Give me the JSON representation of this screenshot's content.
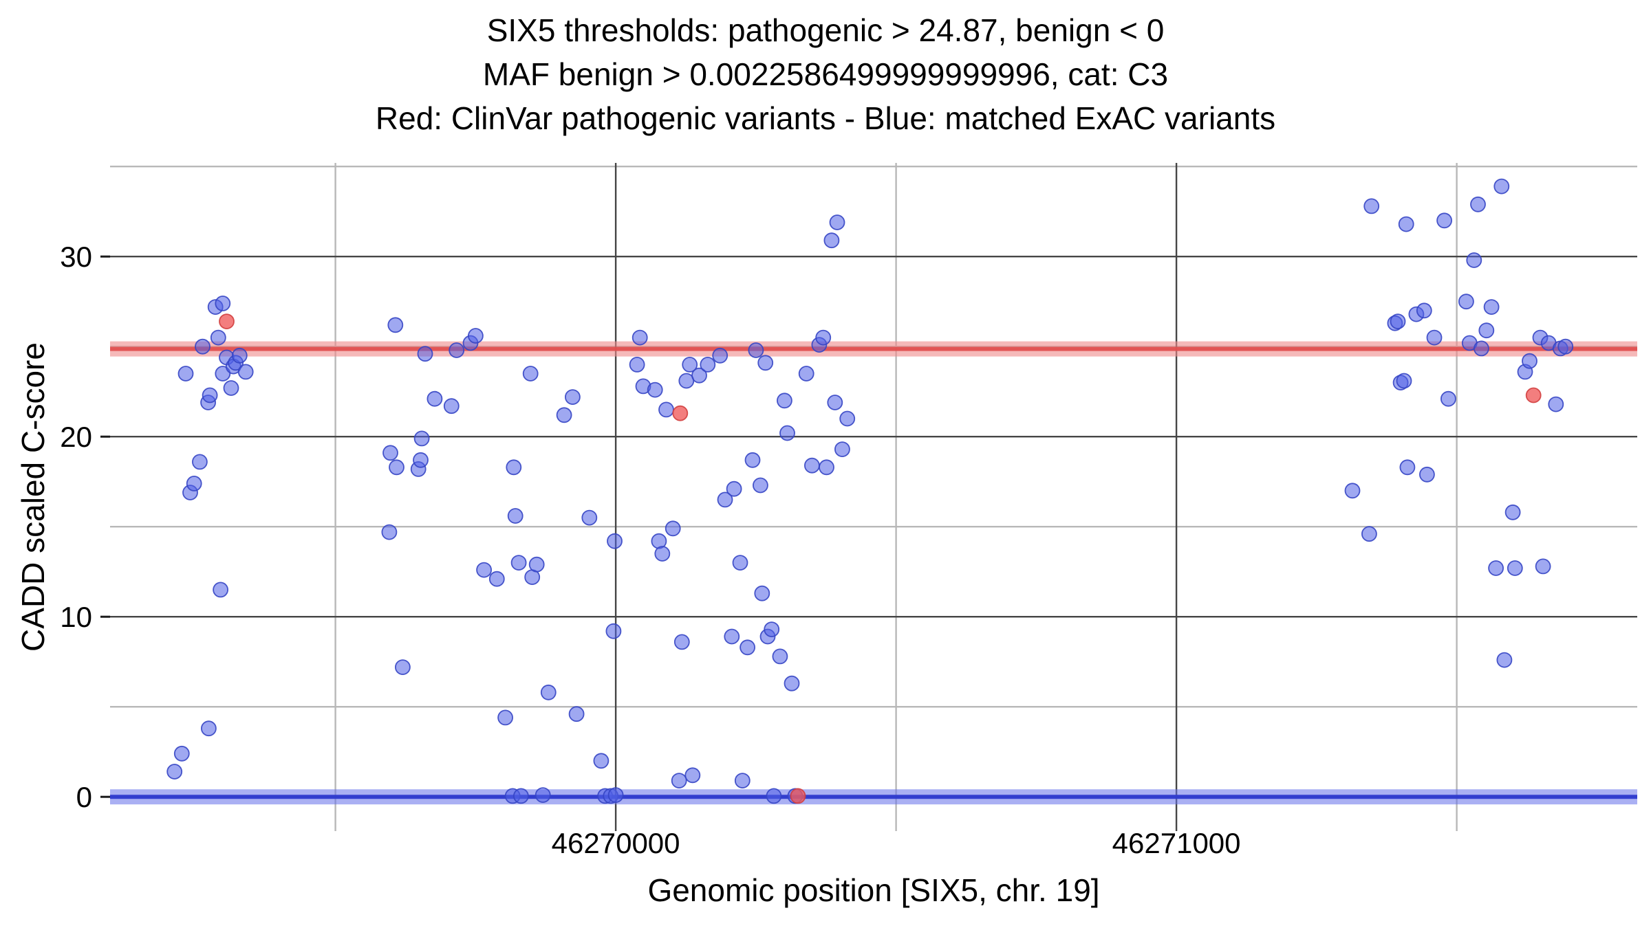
{
  "figure": {
    "title_lines": [
      "SIX5 thresholds: pathogenic > 24.87, benign < 0",
      "MAF benign > 0.0022586499999999996, cat: C3",
      "Red: ClinVar pathogenic variants - Blue: matched ExAC variants"
    ],
    "x_axis_title": "Genomic position [SIX5, chr. 19]",
    "y_axis_title": "CADD scaled C-score"
  },
  "chart_data": {
    "type": "scatter",
    "title": "SIX5 thresholds: pathogenic > 24.87, benign < 0\nMAF benign > 0.0022586499999999996, cat: C3\nRed: ClinVar pathogenic variants - Blue: matched ExAC variants",
    "xlabel": "Genomic position [SIX5, chr. 19]",
    "ylabel": "CADD scaled C-score",
    "xlim": [
      46269098,
      46271822
    ],
    "ylim": [
      -1.9,
      35.2
    ],
    "grid": true,
    "legend": "none",
    "x_ticks": [
      {
        "value": 46270000,
        "label": "46270000"
      },
      {
        "value": 46271000,
        "label": "46271000"
      }
    ],
    "y_ticks": [
      {
        "value": 0,
        "label": "0"
      },
      {
        "value": 10,
        "label": "10"
      },
      {
        "value": 20,
        "label": "20"
      },
      {
        "value": 30,
        "label": "30"
      }
    ],
    "x_minor_gridlines": [
      46269500,
      46270500,
      46271500
    ],
    "y_minor_gridlines": [
      5,
      15,
      25,
      35
    ],
    "thresholds": {
      "pathogenic": 24.87,
      "benign": 0
    },
    "colors": {
      "grid_major": "#454545",
      "grid_minor": "#b8b8b8",
      "tick": "#1a1a1a",
      "pathogenic_band": "#ef8a8a",
      "pathogenic_core": "#e04f4f",
      "benign_band": "#6470ea",
      "benign_core": "#2f3bd0",
      "blue_point_fill": "#5061e6",
      "blue_point_stroke": "#3545c4",
      "red_point_fill": "#ef5a5a",
      "red_point_stroke": "#d23f3f"
    },
    "series": [
      {
        "name": "matched ExAC variants",
        "color_role": "blue",
        "points": [
          [
            46269213,
            1.4
          ],
          [
            46269226,
            2.4
          ],
          [
            46269233,
            23.5
          ],
          [
            46269241,
            16.9
          ],
          [
            46269248,
            17.4
          ],
          [
            46269258,
            18.6
          ],
          [
            46269263,
            25.0
          ],
          [
            46269273,
            21.9
          ],
          [
            46269276,
            22.3
          ],
          [
            46269274,
            3.8
          ],
          [
            46269286,
            27.2
          ],
          [
            46269291,
            25.5
          ],
          [
            46269295,
            11.5
          ],
          [
            46269299,
            27.4
          ],
          [
            46269299,
            23.5
          ],
          [
            46269306,
            24.4
          ],
          [
            46269314,
            22.7
          ],
          [
            46269318,
            23.9
          ],
          [
            46269322,
            24.1
          ],
          [
            46269329,
            24.5
          ],
          [
            46269340,
            23.6
          ],
          [
            46269596,
            14.7
          ],
          [
            46269598,
            19.1
          ],
          [
            46269607,
            26.2
          ],
          [
            46269609,
            18.3
          ],
          [
            46269620,
            7.2
          ],
          [
            46269648,
            18.2
          ],
          [
            46269652,
            18.7
          ],
          [
            46269654,
            19.9
          ],
          [
            46269660,
            24.6
          ],
          [
            46269677,
            22.1
          ],
          [
            46269707,
            21.7
          ],
          [
            46269716,
            24.8
          ],
          [
            46269741,
            25.2
          ],
          [
            46269750,
            25.6
          ],
          [
            46269765,
            12.6
          ],
          [
            46269788,
            12.1
          ],
          [
            46269803,
            4.4
          ],
          [
            46269816,
            0.05
          ],
          [
            46269818,
            18.3
          ],
          [
            46269821,
            15.6
          ],
          [
            46269827,
            13.0
          ],
          [
            46269831,
            0.05
          ],
          [
            46269848,
            23.5
          ],
          [
            46269851,
            12.2
          ],
          [
            46269859,
            12.9
          ],
          [
            46269870,
            0.1
          ],
          [
            46269880,
            5.8
          ],
          [
            46269908,
            21.2
          ],
          [
            46269923,
            22.2
          ],
          [
            46269930,
            4.6
          ],
          [
            46269953,
            15.5
          ],
          [
            46269974,
            2.0
          ],
          [
            46269981,
            0.05
          ],
          [
            46269991,
            0.05
          ],
          [
            46269996,
            9.2
          ],
          [
            46269998,
            14.2
          ],
          [
            46270000,
            0.1
          ],
          [
            46270038,
            24.0
          ],
          [
            46270043,
            25.5
          ],
          [
            46270049,
            22.8
          ],
          [
            46270070,
            22.6
          ],
          [
            46270077,
            14.2
          ],
          [
            46270083,
            13.5
          ],
          [
            46270090,
            21.5
          ],
          [
            46270102,
            14.9
          ],
          [
            46270113,
            0.9
          ],
          [
            46270118,
            8.6
          ],
          [
            46270126,
            23.1
          ],
          [
            46270132,
            24.0
          ],
          [
            46270137,
            1.2
          ],
          [
            46270149,
            23.4
          ],
          [
            46270164,
            24.0
          ],
          [
            46270186,
            24.5
          ],
          [
            46270195,
            16.5
          ],
          [
            46270207,
            8.9
          ],
          [
            46270211,
            17.1
          ],
          [
            46270222,
            13.0
          ],
          [
            46270226,
            0.9
          ],
          [
            46270235,
            8.3
          ],
          [
            46270244,
            18.7
          ],
          [
            46270250,
            24.8
          ],
          [
            46270258,
            17.3
          ],
          [
            46270261,
            11.3
          ],
          [
            46270267,
            24.1
          ],
          [
            46270271,
            8.9
          ],
          [
            46270278,
            9.3
          ],
          [
            46270282,
            0.05
          ],
          [
            46270293,
            7.8
          ],
          [
            46270301,
            22.0
          ],
          [
            46270306,
            20.2
          ],
          [
            46270314,
            6.3
          ],
          [
            46270320,
            0.05
          ],
          [
            46270340,
            23.5
          ],
          [
            46270350,
            18.4
          ],
          [
            46270363,
            25.1
          ],
          [
            46270370,
            25.5
          ],
          [
            46270376,
            18.3
          ],
          [
            46270385,
            30.9
          ],
          [
            46270391,
            21.9
          ],
          [
            46270395,
            31.9
          ],
          [
            46270404,
            19.3
          ],
          [
            46270413,
            21.0
          ],
          [
            46271314,
            17.0
          ],
          [
            46271344,
            14.6
          ],
          [
            46271348,
            32.8
          ],
          [
            46271390,
            26.3
          ],
          [
            46271395,
            26.4
          ],
          [
            46271400,
            23.0
          ],
          [
            46271406,
            23.1
          ],
          [
            46271410,
            31.8
          ],
          [
            46271412,
            18.3
          ],
          [
            46271428,
            26.8
          ],
          [
            46271442,
            27.0
          ],
          [
            46271447,
            17.9
          ],
          [
            46271460,
            25.5
          ],
          [
            46271478,
            32.0
          ],
          [
            46271485,
            22.1
          ],
          [
            46271517,
            27.5
          ],
          [
            46271523,
            25.2
          ],
          [
            46271531,
            29.8
          ],
          [
            46271538,
            32.9
          ],
          [
            46271544,
            24.9
          ],
          [
            46271553,
            25.9
          ],
          [
            46271562,
            27.2
          ],
          [
            46271570,
            12.7
          ],
          [
            46271580,
            33.9
          ],
          [
            46271585,
            7.6
          ],
          [
            46271600,
            15.8
          ],
          [
            46271604,
            12.7
          ],
          [
            46271622,
            23.6
          ],
          [
            46271630,
            24.2
          ],
          [
            46271649,
            25.5
          ],
          [
            46271654,
            12.8
          ],
          [
            46271664,
            25.2
          ],
          [
            46271677,
            21.8
          ],
          [
            46271685,
            24.9
          ],
          [
            46271694,
            25.0
          ]
        ]
      },
      {
        "name": "ClinVar pathogenic variants",
        "color_role": "red",
        "points": [
          [
            46269306,
            26.4
          ],
          [
            46270115,
            21.3
          ],
          [
            46270325,
            0.05
          ],
          [
            46271637,
            22.3
          ]
        ]
      }
    ]
  }
}
